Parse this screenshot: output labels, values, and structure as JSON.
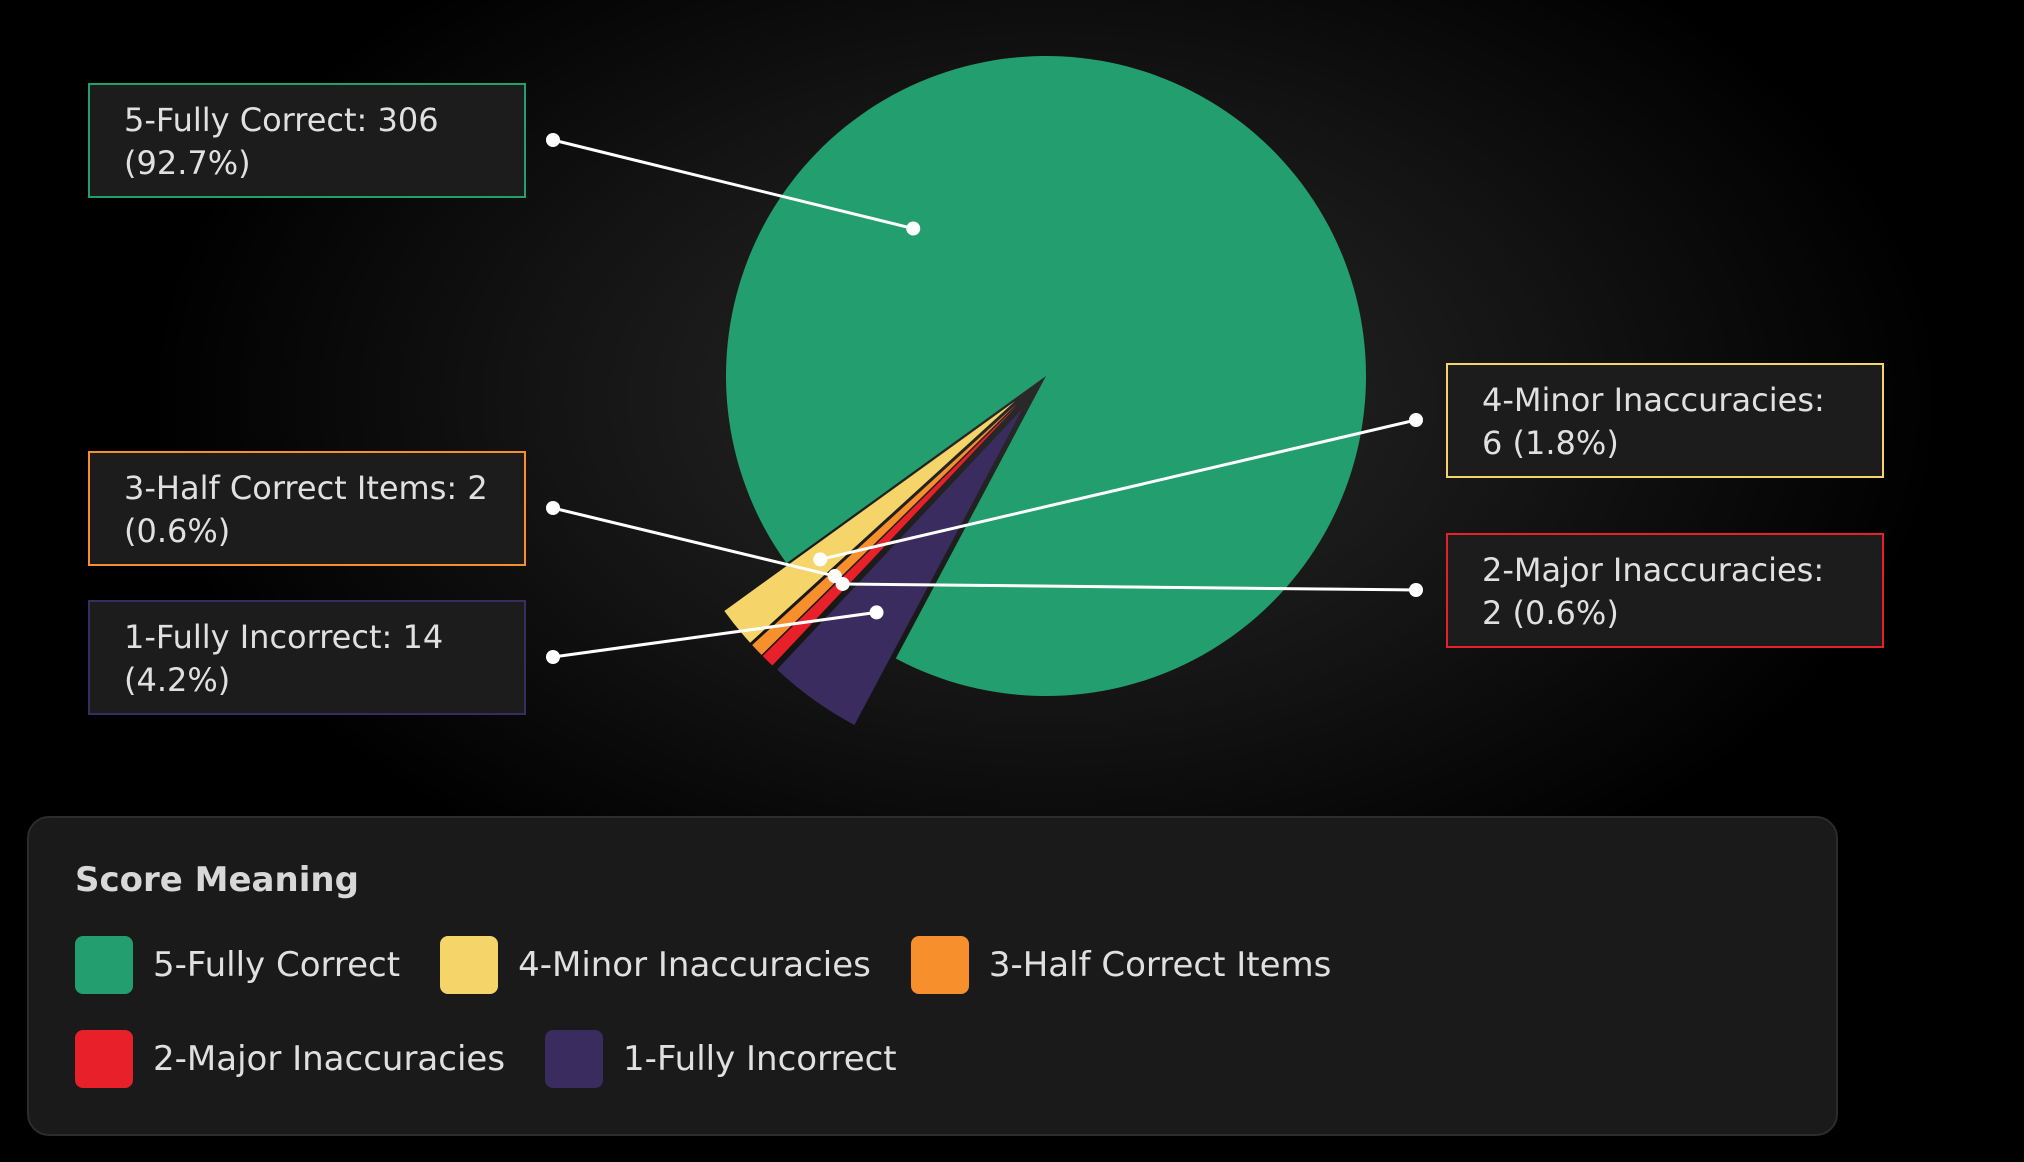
{
  "chart_data": {
    "type": "pie",
    "categories": [
      "5-Fully Correct",
      "4-Minor Inaccuracies",
      "3-Half Correct Items",
      "2-Major Inaccuracies",
      "1-Fully Incorrect"
    ],
    "values": [
      306,
      6,
      2,
      2,
      14
    ],
    "value_labels": [
      "5-Fully Correct: 306 (92.7%)",
      "4-Minor Inaccuracies: 6 (1.8%)",
      "3-Half Correct Items: 2 (0.6%)",
      "2-Major Inaccuracies: 2 (0.6%)",
      "1-Fully Incorrect: 14 (4.2%)"
    ],
    "colors": [
      "#239e6f",
      "#f5d56a",
      "#f78f2c",
      "#e8202a",
      "#3a2c5e"
    ],
    "legend_title": "Score Meaning"
  }
}
